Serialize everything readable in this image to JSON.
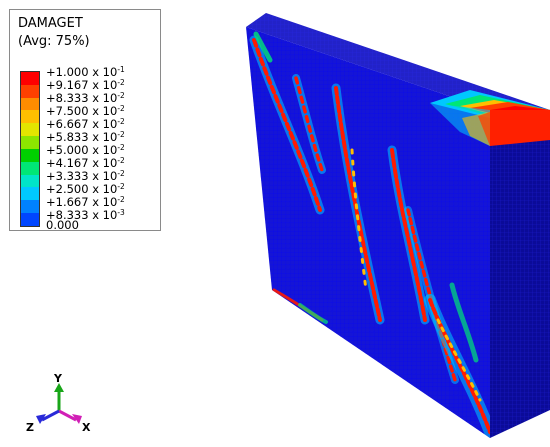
{
  "legend": {
    "variable": "DAMAGET",
    "averaging": "(Avg: 75%)",
    "levels": [
      {
        "mantissa": "+1.000 x 10",
        "exp": "-1",
        "color": "#ff0000"
      },
      {
        "mantissa": "+9.167 x 10",
        "exp": "-2",
        "color": "#ff4000"
      },
      {
        "mantissa": "+8.333 x 10",
        "exp": "-2",
        "color": "#ff8c00"
      },
      {
        "mantissa": "+7.500 x 10",
        "exp": "-2",
        "color": "#ffbf00"
      },
      {
        "mantissa": "+6.667 x 10",
        "exp": "-2",
        "color": "#e3e600"
      },
      {
        "mantissa": "+5.833 x 10",
        "exp": "-2",
        "color": "#8ce600"
      },
      {
        "mantissa": "+5.000 x 10",
        "exp": "-2",
        "color": "#00d000"
      },
      {
        "mantissa": "+4.167 x 10",
        "exp": "-2",
        "color": "#00e676"
      },
      {
        "mantissa": "+3.333 x 10",
        "exp": "-2",
        "color": "#00e5c8"
      },
      {
        "mantissa": "+2.500 x 10",
        "exp": "-2",
        "color": "#00c8ff"
      },
      {
        "mantissa": "+1.667 x 10",
        "exp": "-2",
        "color": "#0082ff"
      },
      {
        "mantissa": "+8.333 x 10",
        "exp": "-3",
        "color": "#0046ff"
      },
      {
        "mantissa": "0.000",
        "exp": "",
        "color": "#0018ff"
      }
    ]
  },
  "triad": {
    "x_label": "X",
    "y_label": "Y",
    "z_label": "Z",
    "x_color": "#d11fb6",
    "y_color": "#19a619",
    "z_color": "#2a2ad8"
  },
  "model": {
    "base_color": "#1515d6",
    "side_color": "#0b0b98",
    "top_color": "#2222c8",
    "mesh_color": "#0000ff"
  }
}
